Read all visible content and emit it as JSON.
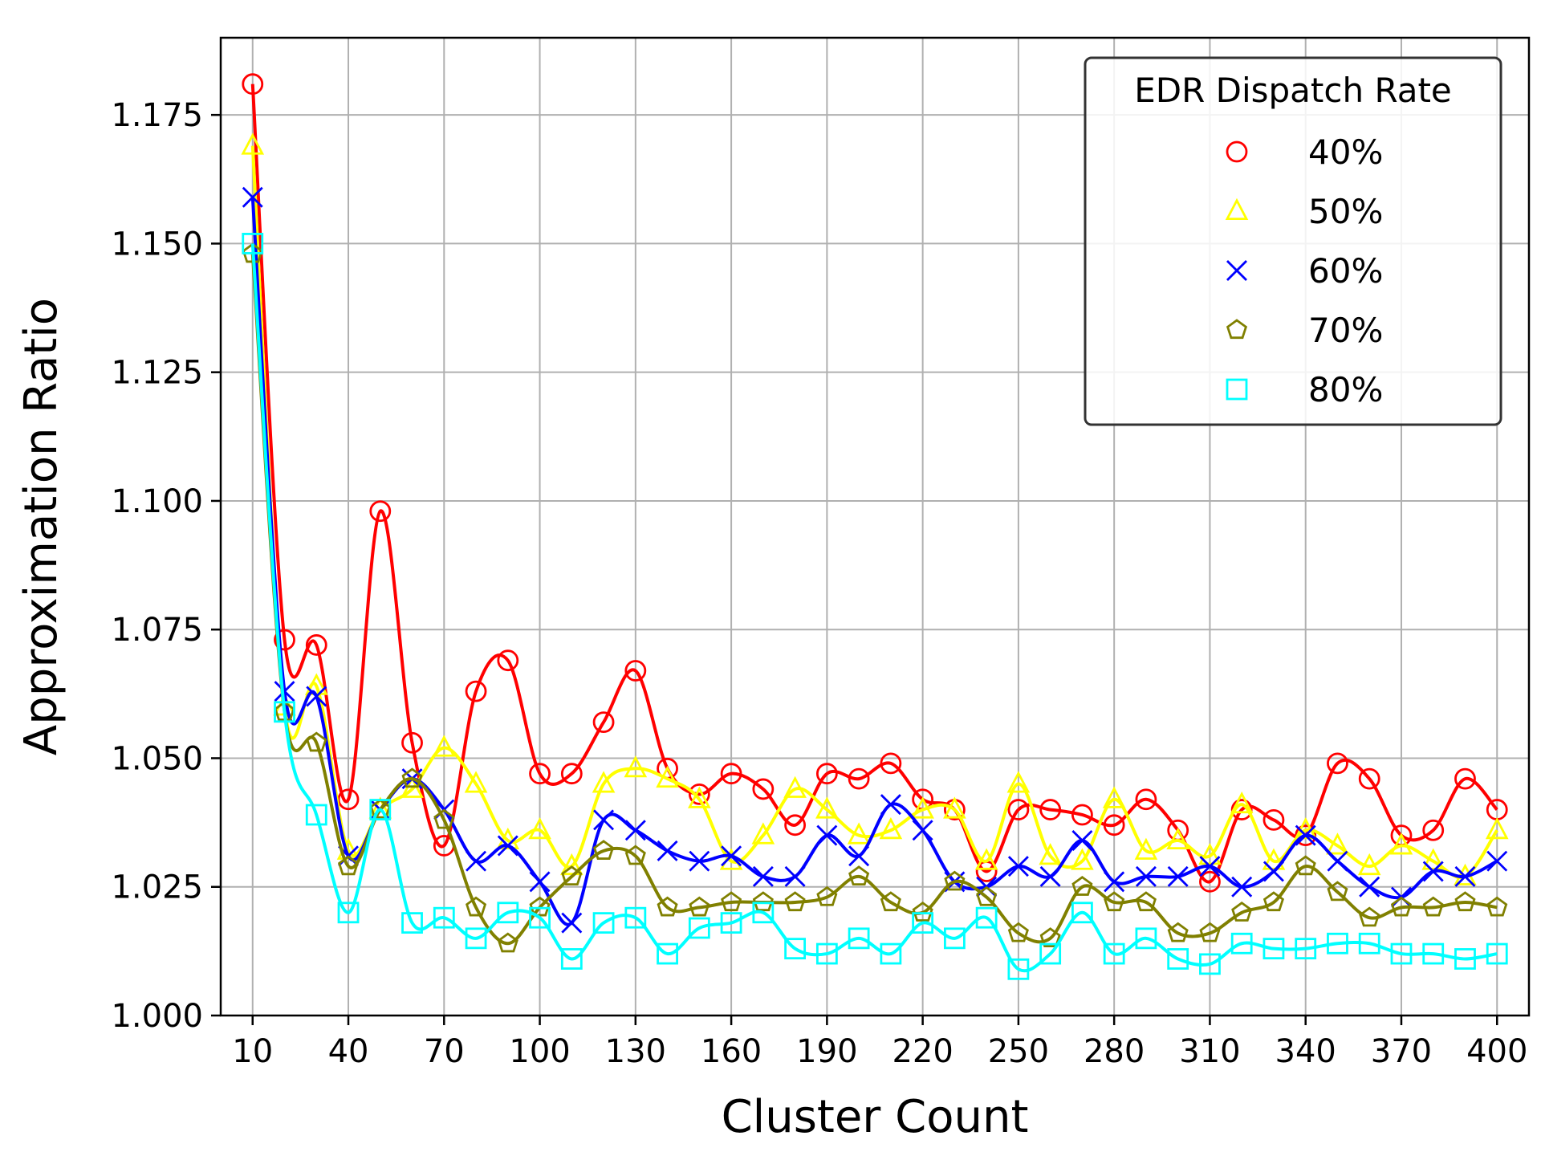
{
  "chart_data": {
    "type": "line",
    "xlabel": "Cluster Count",
    "ylabel": "Approximation Ratio",
    "xlim": [
      0,
      410
    ],
    "ylim": [
      1.0,
      1.19
    ],
    "x_ticks": [
      10,
      40,
      70,
      100,
      130,
      160,
      190,
      220,
      250,
      280,
      310,
      340,
      370,
      400
    ],
    "x_tick_labels": [
      "10",
      "40",
      "70",
      "100",
      "130",
      "160",
      "190",
      "220",
      "250",
      "280",
      "310",
      "340",
      "370",
      "400"
    ],
    "y_ticks": [
      1.0,
      1.025,
      1.05,
      1.075,
      1.1,
      1.125,
      1.15,
      1.175
    ],
    "y_tick_labels": [
      "1.000",
      "1.025",
      "1.050",
      "1.075",
      "1.100",
      "1.125",
      "1.150",
      "1.175"
    ],
    "grid": true,
    "legend": {
      "title": "EDR Dispatch Rate",
      "position": "top-right"
    },
    "x": [
      10,
      20,
      30,
      40,
      50,
      60,
      70,
      80,
      90,
      100,
      110,
      120,
      130,
      140,
      150,
      160,
      170,
      180,
      190,
      200,
      210,
      220,
      230,
      240,
      250,
      260,
      270,
      280,
      290,
      300,
      310,
      320,
      330,
      340,
      350,
      360,
      370,
      380,
      390,
      400
    ],
    "series": [
      {
        "name": "40%",
        "color": "#ff0000",
        "marker": "circle",
        "values": [
          1.181,
          1.073,
          1.072,
          1.042,
          1.098,
          1.053,
          1.033,
          1.063,
          1.069,
          1.047,
          1.047,
          1.057,
          1.067,
          1.048,
          1.043,
          1.047,
          1.044,
          1.037,
          1.047,
          1.046,
          1.049,
          1.042,
          1.04,
          1.028,
          1.04,
          1.04,
          1.039,
          1.037,
          1.042,
          1.036,
          1.026,
          1.04,
          1.038,
          1.035,
          1.049,
          1.046,
          1.035,
          1.036,
          1.046,
          1.04
        ]
      },
      {
        "name": "50%",
        "color": "#ffff00",
        "marker": "triangle",
        "values": [
          1.169,
          1.06,
          1.064,
          1.032,
          1.04,
          1.044,
          1.052,
          1.045,
          1.034,
          1.036,
          1.029,
          1.045,
          1.048,
          1.046,
          1.042,
          1.03,
          1.035,
          1.044,
          1.04,
          1.035,
          1.036,
          1.04,
          1.04,
          1.03,
          1.045,
          1.031,
          1.03,
          1.042,
          1.032,
          1.034,
          1.031,
          1.041,
          1.03,
          1.036,
          1.033,
          1.029,
          1.033,
          1.03,
          1.027,
          1.036
        ]
      },
      {
        "name": "60%",
        "color": "#0000ff",
        "marker": "x",
        "values": [
          1.159,
          1.063,
          1.062,
          1.031,
          1.04,
          1.046,
          1.04,
          1.03,
          1.033,
          1.026,
          1.018,
          1.038,
          1.036,
          1.032,
          1.03,
          1.031,
          1.027,
          1.027,
          1.035,
          1.031,
          1.041,
          1.036,
          1.026,
          1.025,
          1.029,
          1.027,
          1.034,
          1.026,
          1.027,
          1.027,
          1.029,
          1.025,
          1.028,
          1.035,
          1.03,
          1.025,
          1.023,
          1.028,
          1.027,
          1.03
        ]
      },
      {
        "name": "70%",
        "color": "#808000",
        "marker": "pentagon",
        "values": [
          1.148,
          1.059,
          1.053,
          1.029,
          1.04,
          1.046,
          1.038,
          1.021,
          1.014,
          1.021,
          1.027,
          1.032,
          1.031,
          1.021,
          1.021,
          1.022,
          1.022,
          1.022,
          1.023,
          1.027,
          1.022,
          1.02,
          1.026,
          1.023,
          1.016,
          1.015,
          1.025,
          1.022,
          1.022,
          1.016,
          1.016,
          1.02,
          1.022,
          1.029,
          1.024,
          1.019,
          1.021,
          1.021,
          1.022,
          1.021
        ]
      },
      {
        "name": "80%",
        "color": "#00ffff",
        "marker": "square",
        "values": [
          1.15,
          1.059,
          1.039,
          1.02,
          1.04,
          1.018,
          1.019,
          1.015,
          1.02,
          1.019,
          1.011,
          1.018,
          1.019,
          1.012,
          1.017,
          1.018,
          1.02,
          1.013,
          1.012,
          1.015,
          1.012,
          1.018,
          1.015,
          1.019,
          1.009,
          1.012,
          1.02,
          1.012,
          1.015,
          1.011,
          1.01,
          1.014,
          1.013,
          1.013,
          1.014,
          1.014,
          1.012,
          1.012,
          1.011,
          1.012
        ]
      }
    ]
  }
}
